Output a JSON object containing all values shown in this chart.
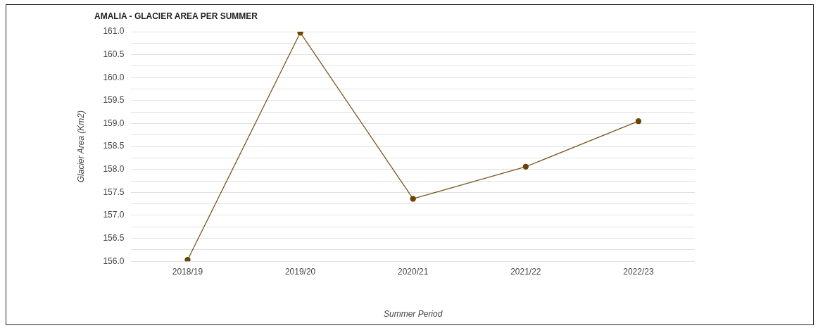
{
  "chart_data": {
    "type": "line",
    "title": "AMALIA - GLACIER AREA PER SUMMER",
    "xlabel": "Summer Period",
    "ylabel": "Glacier Area (Km2)",
    "categories": [
      "2018/19",
      "2019/20",
      "2020/21",
      "2021/22",
      "2022/23"
    ],
    "series": [
      {
        "color": "#7a5520",
        "values": [
          156.03,
          160.98,
          157.36,
          158.06,
          159.05
        ]
      }
    ],
    "ylim": [
      156,
      161
    ],
    "yticks": [
      {
        "value": 156,
        "label": "156.0"
      },
      {
        "value": 156.25,
        "label": null
      },
      {
        "value": 156.5,
        "label": "156.5"
      },
      {
        "value": 156.75,
        "label": null
      },
      {
        "value": 157,
        "label": "157.0"
      },
      {
        "value": 157.25,
        "label": null
      },
      {
        "value": 157.5,
        "label": "157.5"
      },
      {
        "value": 157.75,
        "label": null
      },
      {
        "value": 158,
        "label": "158.0"
      },
      {
        "value": 158.25,
        "label": null
      },
      {
        "value": 158.5,
        "label": "158.5"
      },
      {
        "value": 158.75,
        "label": null
      },
      {
        "value": 159,
        "label": "159.0"
      },
      {
        "value": 159.25,
        "label": null
      },
      {
        "value": 159.5,
        "label": "159.5"
      },
      {
        "value": 159.75,
        "label": null
      },
      {
        "value": 160,
        "label": "160.0"
      },
      {
        "value": 160.25,
        "label": null
      },
      {
        "value": 160.5,
        "label": "160.5"
      },
      {
        "value": 160.75,
        "label": null
      },
      {
        "value": 161,
        "label": "161.0"
      }
    ],
    "grid": "y",
    "legend": false,
    "marker": "circle",
    "line_style": "solid"
  }
}
